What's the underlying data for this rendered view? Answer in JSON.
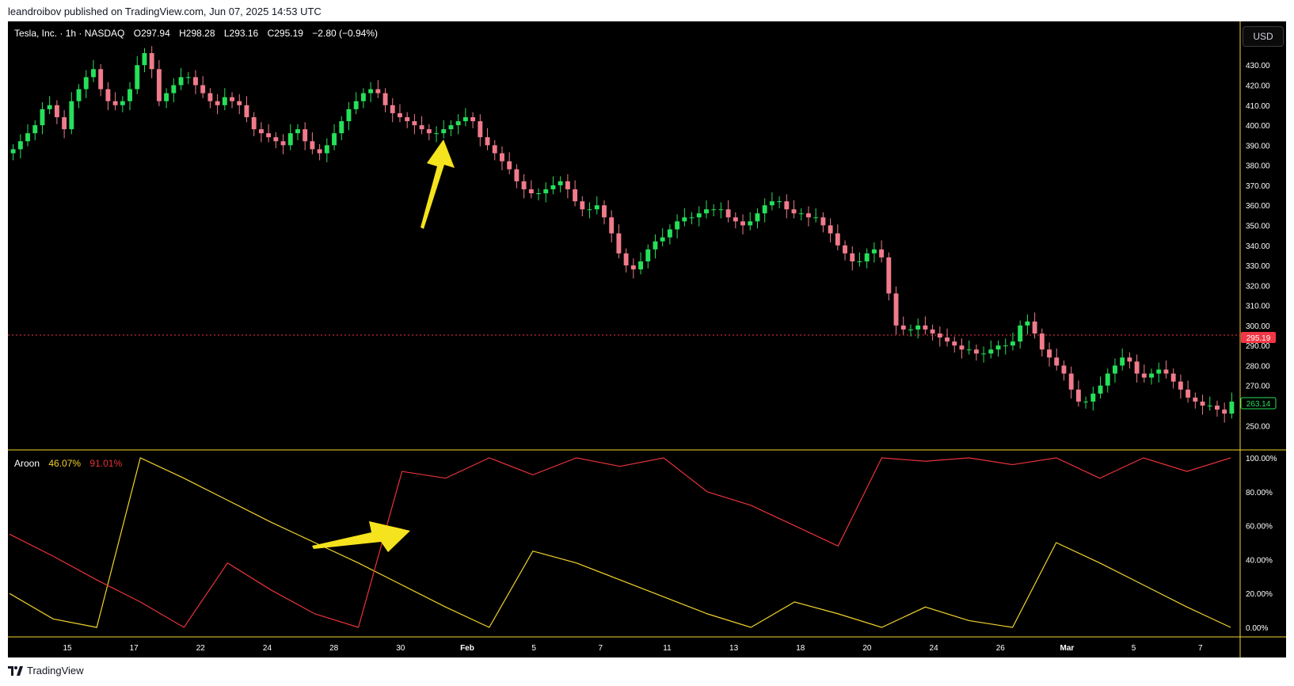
{
  "header": {
    "published": "leandroibov published on TradingView.com, Jun 07, 2025 14:53 UTC"
  },
  "footer": {
    "brand": "TradingView",
    "logo_icon": "tradingview-logo-icon"
  },
  "currency_button": "USD",
  "legend": {
    "symbol": "Tesla, Inc. · 1h · NASDAQ",
    "o": "O297.94",
    "h": "H298.28",
    "l": "L293.16",
    "c": "C295.19",
    "change": "−2.80 (−0.94%)"
  },
  "aroon_legend": {
    "name": "Aroon",
    "up": "46.07%",
    "down": "91.01%"
  },
  "colors": {
    "up_candle": "#26e05a",
    "down_candle": "#f07b8b",
    "aroon_up": "#f2d42b",
    "aroon_down": "#e8333a",
    "price_badge": "#f23645",
    "low_badge": "#1b7a2f",
    "arrow": "#f5e31d"
  },
  "price_badges": {
    "last": "295.19",
    "green": "263.14"
  },
  "chart_data": [
    {
      "type": "candlestick",
      "title": "Tesla, Inc. · 1h · NASDAQ",
      "ylim": [
        243,
        438
      ],
      "yticks": [
        "250.00",
        "260.00",
        "270.00",
        "280.00",
        "290.00",
        "300.00",
        "310.00",
        "320.00",
        "330.00",
        "340.00",
        "350.00",
        "360.00",
        "370.00",
        "380.00",
        "390.00",
        "400.00",
        "410.00",
        "420.00",
        "430.00"
      ],
      "x_labels": [
        "15",
        "17",
        "22",
        "24",
        "28",
        "30",
        "Feb",
        "5",
        "7",
        "11",
        "13",
        "18",
        "20",
        "24",
        "26",
        "Mar",
        "5",
        "7"
      ],
      "close_series_approx": [
        388,
        392,
        396,
        400,
        408,
        410,
        404,
        398,
        412,
        418,
        424,
        428,
        418,
        412,
        410,
        412,
        418,
        430,
        436,
        428,
        412,
        416,
        420,
        424,
        424,
        420,
        416,
        412,
        410,
        414,
        412,
        410,
        404,
        398,
        396,
        394,
        392,
        390,
        396,
        398,
        392,
        388,
        386,
        390,
        396,
        402,
        408,
        412,
        416,
        418,
        416,
        410,
        406,
        404,
        402,
        400,
        398,
        396,
        396,
        398,
        400,
        402,
        404,
        402,
        394,
        390,
        386,
        382,
        378,
        372,
        368,
        366,
        366,
        368,
        370,
        372,
        368,
        362,
        358,
        358,
        360,
        354,
        346,
        336,
        330,
        328,
        332,
        338,
        342,
        344,
        348,
        352,
        354,
        354,
        356,
        358,
        358,
        358,
        354,
        352,
        350,
        352,
        356,
        360,
        362,
        362,
        358,
        356,
        356,
        354,
        354,
        350,
        346,
        340,
        336,
        332,
        332,
        336,
        338,
        334,
        316,
        300,
        298,
        298,
        300,
        298,
        296,
        294,
        292,
        290,
        288,
        288,
        286,
        286,
        288,
        290,
        290,
        292,
        300,
        302,
        296,
        288,
        284,
        280,
        276,
        268,
        262,
        262,
        266,
        270,
        276,
        280,
        284,
        282,
        276,
        274,
        276,
        278,
        276,
        272,
        268,
        264,
        262,
        260,
        260,
        258,
        256,
        262
      ],
      "last_price": 295.19,
      "annotation": "up-arrow"
    },
    {
      "type": "line",
      "title": "Aroon",
      "ylim": [
        0,
        100
      ],
      "yticks": [
        "0.00%",
        "20.00%",
        "40.00%",
        "60.00%",
        "80.00%",
        "100.00%"
      ],
      "series": [
        {
          "name": "Aroon Up",
          "values": [
            20,
            5,
            0,
            100,
            88,
            75,
            62,
            50,
            38,
            25,
            12,
            0,
            45,
            38,
            28,
            18,
            8,
            0,
            15,
            8,
            0,
            12,
            4,
            0,
            50,
            38,
            25,
            12,
            0
          ]
        },
        {
          "name": "Aroon Down",
          "values": [
            55,
            42,
            28,
            15,
            0,
            38,
            22,
            8,
            0,
            92,
            88,
            100,
            90,
            100,
            95,
            100,
            80,
            72,
            60,
            48,
            100,
            98,
            100,
            96,
            100,
            88,
            100,
            92,
            100
          ]
        }
      ],
      "annotation": "right-arrow"
    }
  ]
}
